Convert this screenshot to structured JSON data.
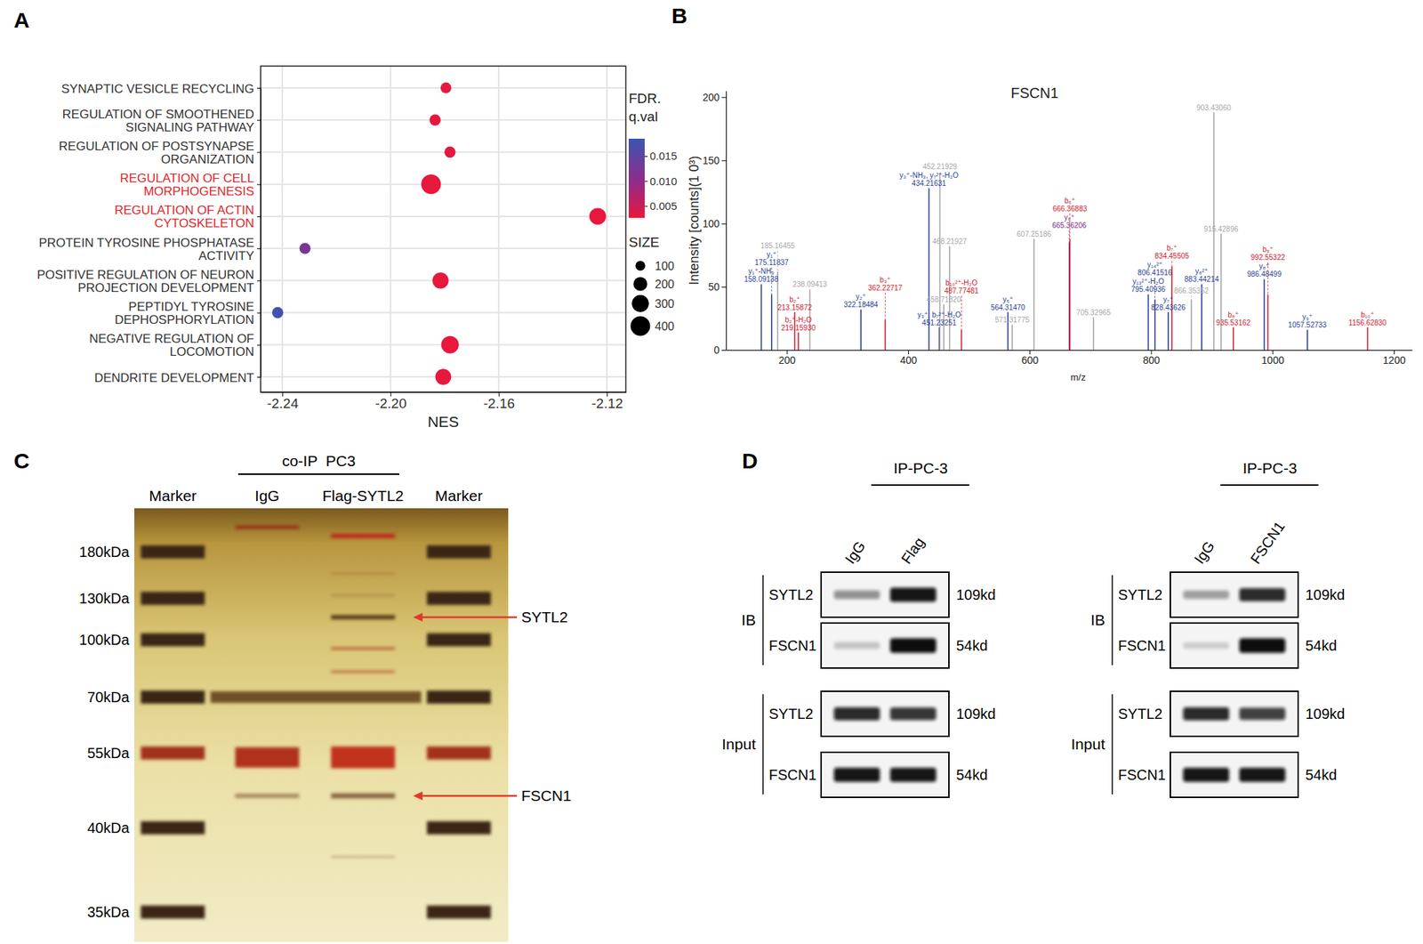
{
  "panel_labels": [
    "A",
    "B",
    "C",
    "D"
  ],
  "chart_data": [
    {
      "type": "scatter",
      "categories": [
        "SYNAPTIC VESICLE RECYCLING",
        "REGULATION OF SMOOTHENED\nSIGNALING PATHWAY",
        "REGULATION OF POSTSYNAPSE\nORGANIZATION",
        "REGULATION OF CELL\nMORPHOGENESIS",
        "REGULATION OF ACTIN\nCYTOSKELETON",
        "PROTEIN TYROSINE PHOSPHATASE\nACTIVITY",
        "POSITIVE REGULATION OF NEURON\nPROJECTION DEVELOPMENT",
        "PEPTIDYL TYROSINE\nDEPHOSPHORYLATION",
        "NEGATIVE REGULATION OF\nLOCOMOTION",
        "DENDRITE DEVELOPMENT"
      ],
      "label_colors": [
        "#333333",
        "#333333",
        "#333333",
        "#e0262b",
        "#e0262b",
        "#333333",
        "#333333",
        "#333333",
        "#333333",
        "#333333"
      ],
      "values": [
        -2.1795,
        -2.1835,
        -2.178,
        -2.185,
        -2.1234,
        -2.2316,
        -2.1815,
        -2.2417,
        -2.178,
        -2.1805
      ],
      "sizes": [
        120,
        130,
        130,
        400,
        290,
        130,
        270,
        130,
        320,
        260
      ],
      "q_values": [
        0.0028,
        0.0027,
        0.003,
        0.0026,
        0.0027,
        0.0122,
        0.0026,
        0.0178,
        0.0026,
        0.0027
      ],
      "x_label": "NES",
      "xlim": [
        -2.248,
        -2.113
      ],
      "xticks": [
        -2.24,
        {
          "value": -2.2,
          "label": "-2.20"
        },
        -2.16,
        -2.12
      ],
      "grid": true,
      "colorbar": {
        "title": "FDR.\nq.val",
        "range": [
          0.0026,
          0.0185
        ],
        "ticks": [
          {
            "value": 0.005,
            "label": "0.005"
          },
          {
            "value": 0.01,
            "label": "0.010"
          },
          {
            "value": 0.015,
            "label": "0.015"
          }
        ],
        "colors": [
          "#e8173c",
          "#8a2d8f",
          "#3a56b0"
        ]
      },
      "size_legend": {
        "title": "SIZE",
        "values": [
          100,
          200,
          300,
          400
        ]
      }
    },
    {
      "type": "spectrum",
      "title": "FSCN1",
      "x_label": "m/z",
      "y_label": "Intensity [counts](1 0³)",
      "xlim": [
        100,
        1230
      ],
      "xticks": [
        200,
        400,
        600,
        800,
        1000,
        1200
      ],
      "ylim": [
        0,
        205
      ],
      "yticks": [
        0,
        50,
        100,
        150,
        200
      ],
      "x": [
        158.09138,
        175.11837,
        185.16455,
        213.15872,
        219.1593,
        238.09413,
        322.18484,
        362.22717,
        434.21631,
        451.23251,
        452.21929,
        458.7182,
        468.21927,
        487.77481,
        564.3147,
        571.31775,
        607.25186,
        665.36206,
        666.36883,
        705.32965,
        795.40936,
        806.41516,
        828.43626,
        834.45505,
        866.35352,
        883.44214,
        903.4306,
        915.42896,
        935.53162,
        986.48499,
        992.55322,
        1057.52733,
        1156.6283
      ],
      "x_labels": [
        "158.09138",
        "175.11837",
        "185.16455",
        "213.15872",
        "219.15930",
        "238.09413",
        "322.18484",
        "362.22717",
        "434.21631",
        "451.23251",
        "452.21929",
        "458.71820",
        "468.21927",
        "487.77481",
        "564.31470",
        "571.31775",
        "607.25186",
        "665.36206",
        "666.36883",
        "705.32965",
        "795.40936",
        "806.41516",
        "828.43626",
        "834.45505",
        "866.35352",
        "883.44214",
        "903.43060",
        "915.42896",
        "935.53162",
        "986.48499",
        "992.55322",
        "1057.52733",
        "1156.62830"
      ],
      "values": [
        52,
        44,
        62,
        30,
        14,
        48,
        32,
        24,
        128,
        18,
        140,
        36,
        82,
        16,
        30,
        20,
        88,
        85,
        88,
        26,
        44,
        40,
        30,
        66,
        40,
        52,
        188,
        92,
        18,
        56,
        44,
        16,
        18
      ],
      "ion_labels": [
        "y₁⁺-NH₃",
        "y₁⁺",
        null,
        "b₂⁺",
        "b₂⁺-H₂O",
        null,
        "y₂⁺",
        "b₃⁺",
        "y₃⁺-NH₃, y₇²⁺-H₂O",
        "y₃⁺, b₇²⁺-H₂O",
        null,
        null,
        null,
        "b₁₀²⁺-H₂O",
        "y₅⁺",
        null,
        null,
        "y₆⁺",
        "b₆⁺",
        null,
        "y₁₃²⁺-H₂O",
        "y₁₄²⁺",
        "y₇⁺",
        "b₇⁺",
        null,
        "y₈²⁺",
        null,
        null,
        "b₈⁺",
        "y₈⁺",
        "b₉⁺",
        "y₉⁺",
        "b₁₀⁺"
      ],
      "colors": [
        "#2b3f97",
        "#2b3f97",
        "#a6a6a6",
        "#d0202c",
        "#d0202c",
        "#a6a6a6",
        "#2b3f97",
        "#d0202c",
        "#2b3f97",
        "#2b3f97",
        "#a6a6a6",
        "#a6a6a6",
        "#a6a6a6",
        "#d0202c",
        "#2b3f97",
        "#a6a6a6",
        "#a6a6a6",
        "#7b2d8b",
        "#d0202c",
        "#a6a6a6",
        "#2b3f97",
        "#2b3f97",
        "#2b3f97",
        "#d0202c",
        "#a6a6a6",
        "#2b3f97",
        "#a6a6a6",
        "#a6a6a6",
        "#d0202c",
        "#2b3f97",
        "#d0202c",
        "#2b3f97",
        "#d0202c"
      ]
    }
  ],
  "gel": {
    "title": "co-IP  PC3",
    "lanes": [
      "Marker",
      "IgG",
      "Flag-SYTL2",
      "Marker"
    ],
    "mw_labels": [
      "180kDa",
      "130kDa",
      "100kDa",
      "70kDa",
      "55kDa",
      "40kDa",
      "35kDa"
    ],
    "arrows": [
      "SYTL2",
      "FSCN1"
    ]
  },
  "blots": [
    {
      "title": "IP-PC-3",
      "lanes": [
        "IgG",
        "Flag"
      ],
      "groups": [
        {
          "label": "IB",
          "rows": [
            {
              "protein": "SYTL2",
              "size": "109kd",
              "intensity": [
                0.35,
                0.95
              ]
            },
            {
              "protein": "FSCN1",
              "size": "54kd",
              "intensity": [
                0.12,
                1
              ]
            }
          ]
        },
        {
          "label": "Input",
          "rows": [
            {
              "protein": "SYTL2",
              "size": "109kd",
              "intensity": [
                0.85,
                0.8
              ]
            },
            {
              "protein": "FSCN1",
              "size": "54kd",
              "intensity": [
                0.95,
                0.95
              ]
            }
          ]
        }
      ]
    },
    {
      "title": "IP-PC-3",
      "lanes": [
        "IgG",
        "FSCN1"
      ],
      "groups": [
        {
          "label": "IB",
          "rows": [
            {
              "protein": "SYTL2",
              "size": "109kd",
              "intensity": [
                0.3,
                0.85
              ]
            },
            {
              "protein": "FSCN1",
              "size": "54kd",
              "intensity": [
                0.08,
                1
              ]
            }
          ]
        },
        {
          "label": "Input",
          "rows": [
            {
              "protein": "SYTL2",
              "size": "109kd",
              "intensity": [
                0.85,
                0.75
              ]
            },
            {
              "protein": "FSCN1",
              "size": "54kd",
              "intensity": [
                0.95,
                0.95
              ]
            }
          ]
        }
      ]
    }
  ]
}
